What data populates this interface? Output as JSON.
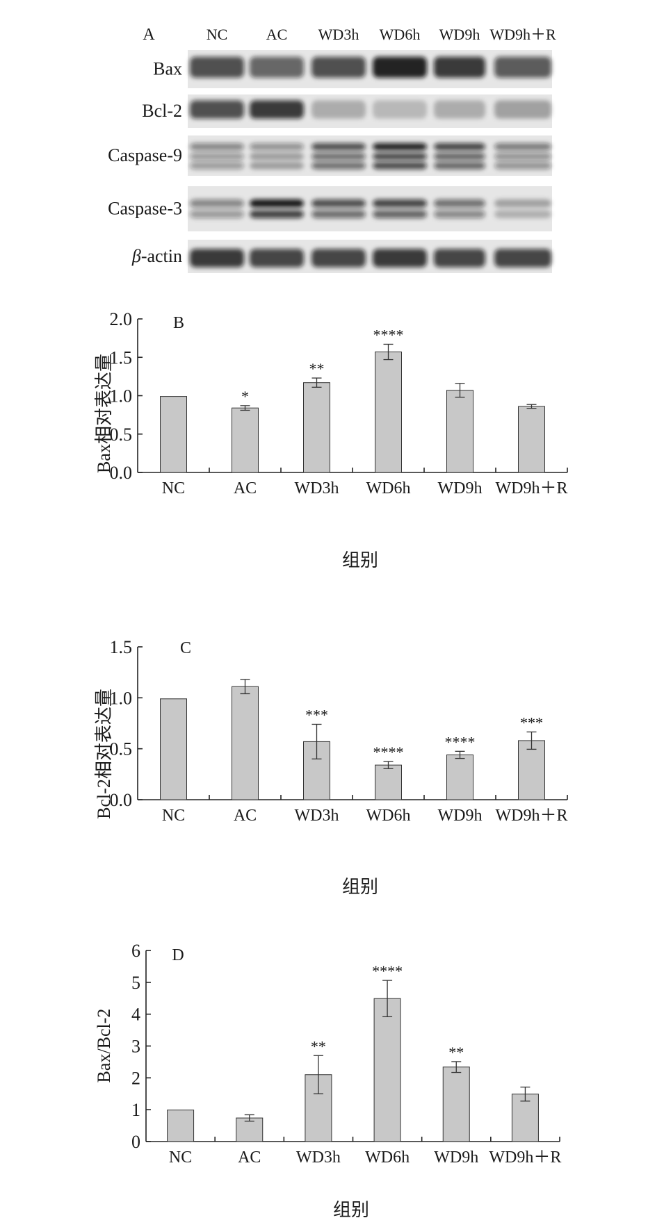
{
  "chart_data": [
    {
      "type": "table",
      "panel_label": "A",
      "columns": [
        "NC",
        "AC",
        "WD3h",
        "WD6h",
        "WD9h",
        "WD9h＋R"
      ],
      "rows": [
        "Bax",
        "Bcl-2",
        "Caspase-9",
        "Caspase-3",
        "β-actin"
      ],
      "row_labels": [
        {
          "italic": "",
          "text": "Bax"
        },
        {
          "italic": "",
          "text": "Bcl-2"
        },
        {
          "italic": "",
          "text": "Caspase-9"
        },
        {
          "italic": "",
          "text": "Caspase-3"
        },
        {
          "italic": "β",
          "text": "-actin"
        }
      ],
      "band_intensity": [
        [
          0.7,
          0.6,
          0.7,
          0.9,
          0.8,
          0.65
        ],
        [
          0.7,
          0.8,
          0.25,
          0.2,
          0.25,
          0.3
        ],
        [
          0.45,
          0.4,
          0.7,
          0.9,
          0.75,
          0.5
        ],
        [
          0.45,
          0.95,
          0.7,
          0.75,
          0.55,
          0.3
        ],
        [
          0.8,
          0.75,
          0.75,
          0.8,
          0.75,
          0.75
        ]
      ]
    },
    {
      "type": "bar",
      "panel_label": "B",
      "categories": [
        "NC",
        "AC",
        "WD3h",
        "WD6h",
        "WD9h",
        "WD9h＋R"
      ],
      "values": [
        0.99,
        0.84,
        1.17,
        1.57,
        1.07,
        0.86
      ],
      "errors": [
        0.0,
        0.03,
        0.06,
        0.1,
        0.09,
        0.025
      ],
      "significance": [
        "",
        "*",
        "**",
        "****",
        "",
        ""
      ],
      "ylim": [
        0,
        2.0
      ],
      "yticks": [
        "0.0",
        "0.5",
        "1.0",
        "1.5",
        "2.0"
      ],
      "xlabel": "组别",
      "ylabel": "Bax相对表达量",
      "bar_color": "#c8c8c8"
    },
    {
      "type": "bar",
      "panel_label": "C",
      "categories": [
        "NC",
        "AC",
        "WD3h",
        "WD6h",
        "WD9h",
        "WD9h＋R"
      ],
      "values": [
        0.99,
        1.11,
        0.57,
        0.34,
        0.44,
        0.58
      ],
      "errors": [
        0.0,
        0.07,
        0.17,
        0.035,
        0.035,
        0.085
      ],
      "significance": [
        "",
        "",
        "***",
        "****",
        "****",
        "***"
      ],
      "ylim": [
        0,
        1.5
      ],
      "yticks": [
        "0.0",
        "0.5",
        "1.0",
        "1.5"
      ],
      "xlabel": "组别",
      "ylabel": "Bcl-2相对表达量",
      "bar_color": "#c8c8c8"
    },
    {
      "type": "bar",
      "panel_label": "D",
      "categories": [
        "NC",
        "AC",
        "WD3h",
        "WD6h",
        "WD9h",
        "WD9h＋R"
      ],
      "values": [
        0.99,
        0.74,
        2.1,
        4.49,
        2.34,
        1.49
      ],
      "errors": [
        0.0,
        0.1,
        0.6,
        0.57,
        0.17,
        0.22
      ],
      "significance": [
        "",
        "",
        "**",
        "****",
        "**",
        ""
      ],
      "ylim": [
        0,
        6
      ],
      "yticks": [
        "0",
        "1",
        "2",
        "3",
        "4",
        "5",
        "6"
      ],
      "xlabel": "组别",
      "ylabel": "Bax/Bcl-2",
      "bar_color": "#c8c8c8"
    }
  ]
}
